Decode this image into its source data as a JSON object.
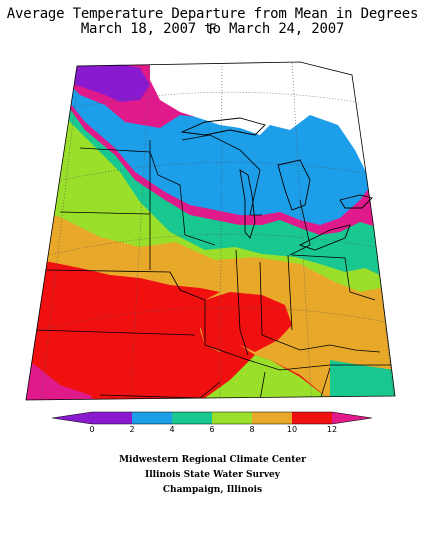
{
  "title": {
    "line1": "Average Temperature Departure from Mean in Degrees F",
    "line2": "March 18, 2007 to March 24, 2007"
  },
  "legend": {
    "ticks": [
      "0",
      "2",
      "4",
      "6",
      "8",
      "10",
      "12"
    ],
    "colors": [
      "#8a1ad0",
      "#1c9ee8",
      "#18c890",
      "#9ae02a",
      "#e8a82a",
      "#f01010",
      "#e01a8a"
    ]
  },
  "credits": {
    "line1": "Midwestern Regional Climate Center",
    "line2": "Illinois State Water Survey",
    "line3": "Champaign, Illinois"
  },
  "map_colors": {
    "purple": "#8a1ad0",
    "blue": "#1c9ee8",
    "teal": "#18c890",
    "green": "#9ae02a",
    "orange": "#e8a82a",
    "red": "#f01010",
    "magenta": "#e01a8a"
  }
}
